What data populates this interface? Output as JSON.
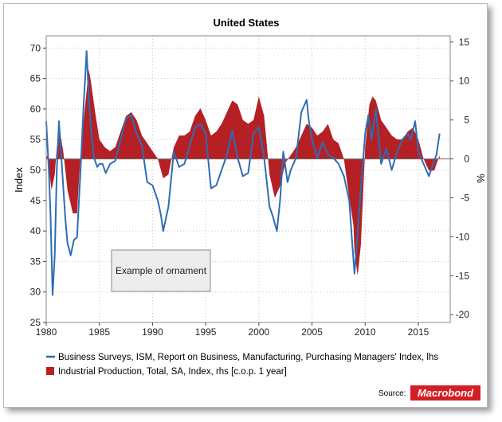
{
  "chart_data": {
    "type": "line",
    "title": "United States",
    "ylabel": "Index",
    "y2label": "%",
    "xlim": [
      1980,
      2018
    ],
    "ylim": [
      25,
      72
    ],
    "y2lim": [
      -21,
      15.8
    ],
    "x_ticks": [
      1980,
      1985,
      1990,
      1995,
      2000,
      2005,
      2010,
      2015
    ],
    "y_ticks": [
      25,
      30,
      35,
      40,
      45,
      50,
      55,
      60,
      65,
      70
    ],
    "y2_ticks": [
      15,
      10,
      5,
      0,
      -5,
      -10,
      -15,
      -20
    ],
    "grid": true,
    "legend_position": "bottom",
    "series": [
      {
        "name": "Business Surveys, ISM, Report on Business, Manufacturing, Purchasing Managers' Index, lhs",
        "axis": "left",
        "style": "line",
        "color": "#2d6db5",
        "x": [
          1980.0,
          1980.25,
          1980.4,
          1980.6,
          1980.8,
          1981.0,
          1981.2,
          1981.5,
          1981.8,
          1982.0,
          1982.3,
          1982.6,
          1982.9,
          1983.2,
          1983.5,
          1983.8,
          1984.0,
          1984.2,
          1984.5,
          1984.8,
          1985.0,
          1985.3,
          1985.6,
          1986.0,
          1986.5,
          1987.0,
          1987.5,
          1988.0,
          1988.5,
          1989.0,
          1989.5,
          1990.0,
          1990.5,
          1990.8,
          1991.0,
          1991.5,
          1992.0,
          1992.5,
          1993.0,
          1993.5,
          1994.0,
          1994.5,
          1995.0,
          1995.5,
          1996.0,
          1996.5,
          1997.0,
          1997.5,
          1998.0,
          1998.5,
          1999.0,
          1999.5,
          2000.0,
          2000.5,
          2001.0,
          2001.3,
          2001.7,
          2002.0,
          2002.3,
          2002.7,
          2003.0,
          2003.5,
          2004.0,
          2004.5,
          2004.7,
          2005.0,
          2005.5,
          2006.0,
          2006.5,
          2007.0,
          2007.5,
          2008.0,
          2008.5,
          2008.8,
          2009.0,
          2009.3,
          2009.6,
          2010.0,
          2010.3,
          2010.6,
          2011.0,
          2011.5,
          2012.0,
          2012.5,
          2013.0,
          2013.5,
          2014.0,
          2014.3,
          2014.7,
          2015.0,
          2015.5,
          2016.0,
          2016.3,
          2016.7,
          2017.0
        ],
        "y": [
          58.0,
          50.0,
          43.0,
          29.5,
          36.0,
          50.0,
          58.0,
          50.0,
          42.0,
          38.0,
          36.0,
          38.5,
          39.0,
          49.0,
          60.0,
          69.5,
          62.0,
          57.0,
          52.0,
          50.5,
          51.0,
          51.0,
          49.5,
          51.0,
          51.5,
          55.0,
          58.5,
          59.0,
          56.0,
          54.0,
          48.0,
          47.5,
          45.0,
          42.5,
          40.0,
          44.0,
          53.0,
          50.5,
          51.0,
          54.0,
          57.0,
          57.5,
          56.0,
          47.0,
          47.5,
          50.0,
          52.5,
          56.5,
          52.0,
          49.0,
          49.5,
          56.0,
          57.0,
          52.0,
          44.0,
          42.5,
          40.0,
          45.0,
          53.0,
          48.0,
          50.0,
          52.0,
          59.5,
          61.5,
          58.0,
          55.0,
          52.0,
          54.5,
          52.5,
          52.0,
          51.0,
          49.0,
          45.0,
          37.5,
          33.0,
          40.0,
          47.0,
          56.0,
          59.0,
          55.0,
          60.0,
          51.0,
          53.5,
          50.0,
          53.0,
          55.0,
          56.0,
          55.0,
          58.0,
          53.0,
          51.0,
          49.0,
          50.5,
          52.5,
          56.0
        ]
      },
      {
        "name": "Industrial Production, Total, SA, Index, rhs [c.o.p. 1 year]",
        "axis": "right",
        "style": "area",
        "color": "#b52025",
        "x": [
          1980.0,
          1980.1,
          1980.5,
          1980.8,
          1981.0,
          1981.3,
          1981.6,
          1982.0,
          1982.5,
          1982.9,
          1983.2,
          1983.6,
          1984.0,
          1984.2,
          1984.6,
          1985.0,
          1985.5,
          1986.0,
          1986.5,
          1987.0,
          1987.5,
          1988.0,
          1988.5,
          1989.0,
          1989.5,
          1990.0,
          1990.5,
          1991.0,
          1991.5,
          1992.0,
          1992.5,
          1993.0,
          1993.5,
          1994.0,
          1994.5,
          1995.0,
          1995.5,
          1996.0,
          1996.5,
          1997.0,
          1997.5,
          1998.0,
          1998.5,
          1999.0,
          1999.5,
          2000.0,
          2000.5,
          2001.0,
          2001.5,
          2002.0,
          2002.5,
          2003.0,
          2003.5,
          2004.0,
          2004.5,
          2005.0,
          2005.5,
          2006.0,
          2006.5,
          2007.0,
          2007.5,
          2008.0,
          2008.5,
          2008.9,
          2009.0,
          2009.3,
          2009.6,
          2010.0,
          2010.4,
          2010.7,
          2011.0,
          2011.5,
          2012.0,
          2012.5,
          2013.0,
          2013.5,
          2014.0,
          2014.5,
          2015.0,
          2015.5,
          2016.0,
          2016.5,
          2017.0
        ],
        "y": [
          0,
          0.5,
          -4.0,
          -2.0,
          1.5,
          3.5,
          1.0,
          -4.0,
          -7.0,
          -7.0,
          0,
          6.0,
          11.5,
          10.0,
          6.0,
          2.5,
          1.5,
          1.0,
          1.5,
          3.5,
          5.5,
          6.0,
          5.0,
          3.0,
          2.0,
          1.0,
          0,
          -2.5,
          -2.0,
          1.5,
          3.0,
          3.0,
          3.5,
          5.5,
          6.5,
          5.0,
          3.0,
          3.5,
          4.5,
          6.0,
          7.5,
          7.0,
          5.0,
          4.5,
          5.0,
          8.0,
          5.5,
          -2.0,
          -5.0,
          -3.5,
          -0.5,
          0.5,
          1.5,
          3.0,
          4.5,
          4.0,
          3.0,
          3.5,
          4.5,
          2.5,
          2.0,
          0,
          -5.0,
          -8.5,
          -12.0,
          -15.0,
          -11.0,
          1.5,
          7.0,
          8.0,
          7.5,
          5.0,
          4.0,
          3.0,
          2.5,
          2.5,
          3.5,
          4.0,
          2.5,
          0,
          -1.5,
          -1.5,
          0.5
        ]
      }
    ],
    "annotation": "Example of ornament"
  },
  "footer": {
    "source_label": "Source:",
    "logo_text": "Macrobond",
    "logo_color": "#d21f26"
  }
}
